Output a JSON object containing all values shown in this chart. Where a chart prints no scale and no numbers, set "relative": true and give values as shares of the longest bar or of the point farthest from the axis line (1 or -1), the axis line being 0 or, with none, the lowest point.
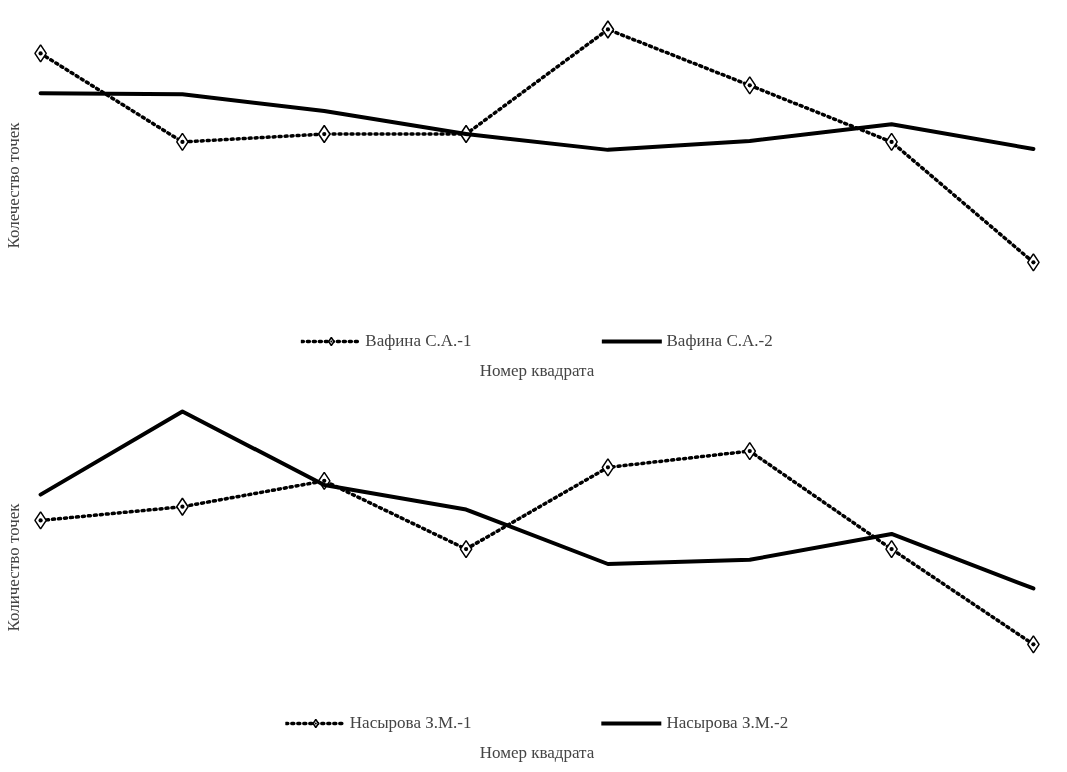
{
  "chart_data": [
    {
      "type": "line",
      "relative": true,
      "ylabel": "Колечество точек",
      "xlabel": "Номер квадрата",
      "legend": "bottom",
      "grid": false,
      "categories": [
        null,
        null,
        null,
        null,
        null,
        null,
        null,
        null
      ],
      "series": [
        {
          "name": "Вафина С.А.-1",
          "color": "#000000",
          "marker": "diamond",
          "line_style": "dotted",
          "values": [
            0.897,
            0.517,
            0.551,
            0.551,
            1,
            0.76,
            0.517,
            0
          ]
        },
        {
          "name": "Вафина С.А.-2",
          "color": "#000000",
          "marker": "none",
          "line_style": "solid",
          "values": [
            0.726,
            0.722,
            0.65,
            0.551,
            0.483,
            0.521,
            0.593,
            0.487
          ]
        }
      ]
    },
    {
      "type": "line",
      "relative": true,
      "ylabel": "Количество точек",
      "xlabel": "Номер квадрата",
      "legend": "bottom",
      "grid": false,
      "categories": [
        null,
        null,
        null,
        null,
        null,
        null,
        null,
        null
      ],
      "series": [
        {
          "name": "Насырова З.М.-1",
          "color": "#000000",
          "marker": "diamond",
          "line_style": "dotted",
          "values": [
            0.532,
            0.591,
            0.702,
            0.409,
            0.76,
            0.83,
            0.409,
            0
          ]
        },
        {
          "name": "Насырова З.М.-2",
          "color": "#000000",
          "marker": "none",
          "line_style": "solid",
          "values": [
            0.643,
            1,
            0.684,
            0.579,
            0.345,
            0.363,
            0.474,
            0.24
          ]
        }
      ]
    }
  ]
}
